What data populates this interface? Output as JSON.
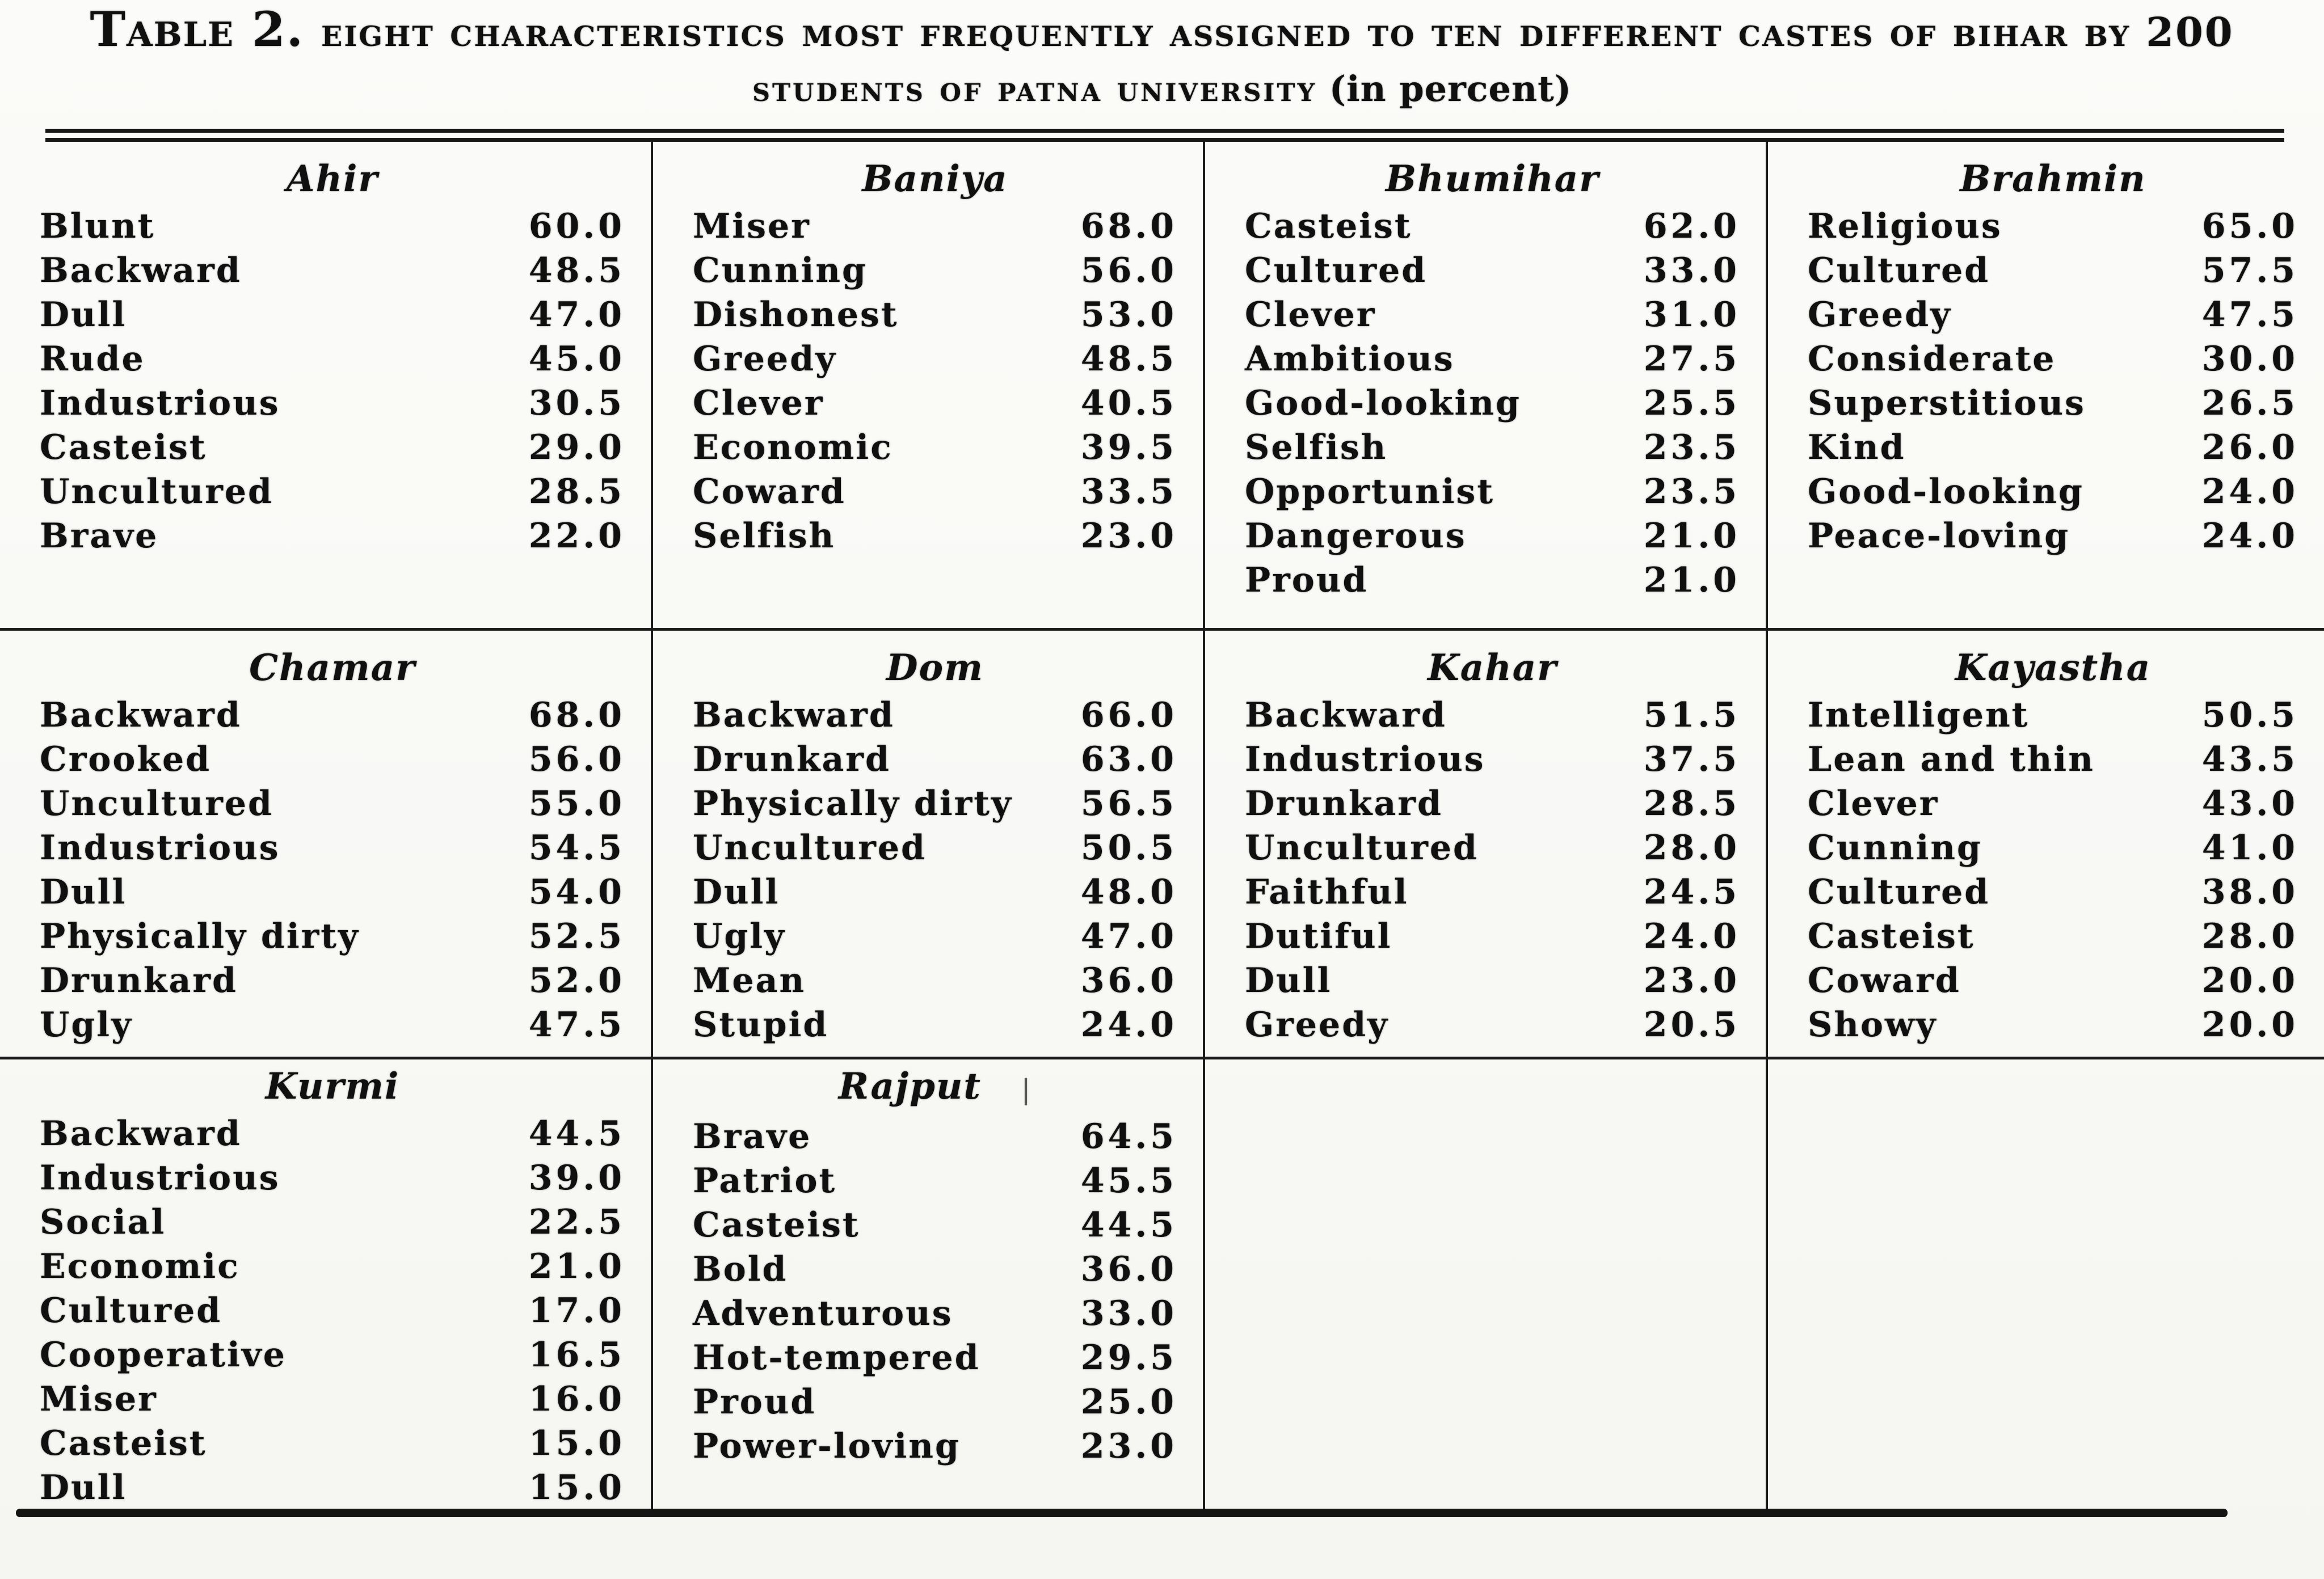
{
  "title": {
    "prefix": "Table 2.",
    "line1": "eight characteristics most frequently assigned to ten different castes of bihar by 200",
    "line2": "students of patna university",
    "line2_paren": "(in percent)"
  },
  "panels": [
    {
      "caste": "Ahir",
      "rows": [
        [
          "Blunt",
          "60.0"
        ],
        [
          "Backward",
          "48.5"
        ],
        [
          "Dull",
          "47.0"
        ],
        [
          "Rude",
          "45.0"
        ],
        [
          "Industrious",
          "30.5"
        ],
        [
          "Casteist",
          "29.0"
        ],
        [
          "Uncultured",
          "28.5"
        ],
        [
          "Brave",
          "22.0"
        ]
      ]
    },
    {
      "caste": "Baniya",
      "rows": [
        [
          "Miser",
          "68.0"
        ],
        [
          "Cunning",
          "56.0"
        ],
        [
          "Dishonest",
          "53.0"
        ],
        [
          "Greedy",
          "48.5"
        ],
        [
          "Clever",
          "40.5"
        ],
        [
          "Economic",
          "39.5"
        ],
        [
          "Coward",
          "33.5"
        ],
        [
          "Selfish",
          "23.0"
        ]
      ]
    },
    {
      "caste": "Bhumihar",
      "rows": [
        [
          "Casteist",
          "62.0"
        ],
        [
          "Cultured",
          "33.0"
        ],
        [
          "Clever",
          "31.0"
        ],
        [
          "Ambitious",
          "27.5"
        ],
        [
          "Good-looking",
          "25.5"
        ],
        [
          "Selfish",
          "23.5"
        ],
        [
          "Opportunist",
          "23.5"
        ],
        [
          "Dangerous",
          "21.0"
        ],
        [
          "Proud",
          "21.0"
        ]
      ]
    },
    {
      "caste": "Brahmin",
      "rows": [
        [
          "Religious",
          "65.0"
        ],
        [
          "Cultured",
          "57.5"
        ],
        [
          "Greedy",
          "47.5"
        ],
        [
          "Considerate",
          "30.0"
        ],
        [
          "Superstitious",
          "26.5"
        ],
        [
          "Kind",
          "26.0"
        ],
        [
          "Good-looking",
          "24.0"
        ],
        [
          "Peace-loving",
          "24.0"
        ]
      ]
    },
    {
      "caste": "Chamar",
      "rows": [
        [
          "Backward",
          "68.0"
        ],
        [
          "Crooked",
          "56.0"
        ],
        [
          "Uncultured",
          "55.0"
        ],
        [
          "Industrious",
          "54.5"
        ],
        [
          "Dull",
          "54.0"
        ],
        [
          "Physically dirty",
          "52.5"
        ],
        [
          "Drunkard",
          "52.0"
        ],
        [
          "Ugly",
          "47.5"
        ]
      ]
    },
    {
      "caste": "Dom",
      "rows": [
        [
          "Backward",
          "66.0"
        ],
        [
          "Drunkard",
          "63.0"
        ],
        [
          "Physically dirty",
          "56.5"
        ],
        [
          "Uncultured",
          "50.5"
        ],
        [
          "Dull",
          "48.0"
        ],
        [
          "Ugly",
          "47.0"
        ],
        [
          "Mean",
          "36.0"
        ],
        [
          "Stupid",
          "24.0"
        ]
      ]
    },
    {
      "caste": "Kahar",
      "rows": [
        [
          "Backward",
          "51.5"
        ],
        [
          "Industrious",
          "37.5"
        ],
        [
          "Drunkard",
          "28.5"
        ],
        [
          "Uncultured",
          "28.0"
        ],
        [
          "Faithful",
          "24.5"
        ],
        [
          "Dutiful",
          "24.0"
        ],
        [
          "Dull",
          "23.0"
        ],
        [
          "Greedy",
          "20.5"
        ]
      ]
    },
    {
      "caste": "Kayastha",
      "rows": [
        [
          "Intelligent",
          "50.5"
        ],
        [
          "Lean and thin",
          "43.5"
        ],
        [
          "Clever",
          "43.0"
        ],
        [
          "Cunning",
          "41.0"
        ],
        [
          "Cultured",
          "38.0"
        ],
        [
          "Casteist",
          "28.0"
        ],
        [
          "Coward",
          "20.0"
        ],
        [
          "Showy",
          "20.0"
        ]
      ]
    },
    {
      "caste": "Kurmi",
      "rows": [
        [
          "Backward",
          "44.5"
        ],
        [
          "Industrious",
          "39.0"
        ],
        [
          "Social",
          "22.5"
        ],
        [
          "Economic",
          "21.0"
        ],
        [
          "Cultured",
          "17.0"
        ],
        [
          "Cooperative",
          "16.5"
        ],
        [
          "Miser",
          "16.0"
        ],
        [
          "Casteist",
          "15.0"
        ],
        [
          "Dull",
          "15.0"
        ]
      ]
    },
    {
      "caste": "Rajput",
      "header_mark": "|",
      "rows": [
        [
          "Brave",
          "64.5"
        ],
        [
          "Patriot",
          "45.5"
        ],
        [
          "Casteist",
          "44.5"
        ],
        [
          "Bold",
          "36.0"
        ],
        [
          "Adventurous",
          "33.0"
        ],
        [
          "Hot-tempered",
          "29.5"
        ],
        [
          "Proud",
          "25.0"
        ],
        [
          "Power-loving",
          "23.0"
        ]
      ]
    }
  ],
  "ink_color": "#101010",
  "rule_color": "#1b1b1b"
}
